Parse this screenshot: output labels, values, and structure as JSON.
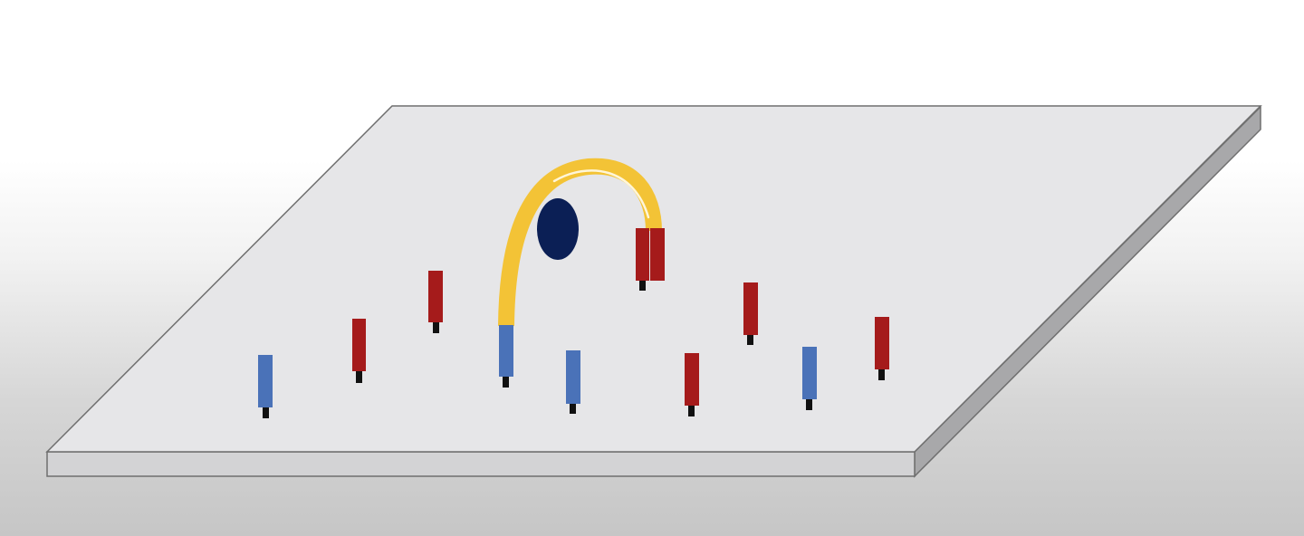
{
  "colors": {
    "platform_top": "#e6e6e8",
    "platform_front": "#d3d3d5",
    "platform_side": "#a8a8aa",
    "platform_edge": "#6f6f6f",
    "red_post": "#a51b1b",
    "blue_post": "#4a72b8",
    "post_base": "#111111",
    "arch": "#f3c336",
    "arch_highlight": "#fff6d8",
    "ball": "#0b1f55"
  },
  "platform": {
    "shape": "parallelogram slab"
  },
  "posts": [
    {
      "color": "blue"
    },
    {
      "color": "red"
    },
    {
      "color": "red"
    },
    {
      "color": "blue"
    },
    {
      "color": "blue"
    },
    {
      "color": "red"
    },
    {
      "color": "red"
    },
    {
      "color": "blue"
    },
    {
      "color": "red"
    }
  ],
  "arch": {
    "description_color": "yellow",
    "end_posts": [
      "blue",
      "red"
    ]
  },
  "ball": {
    "color": "dark-blue"
  }
}
